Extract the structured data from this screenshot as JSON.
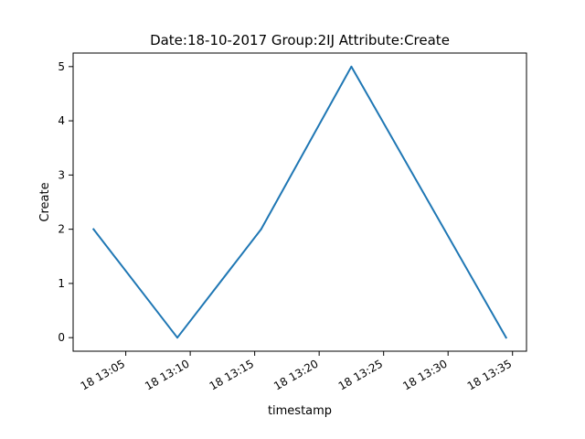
{
  "chart_data": {
    "type": "line",
    "title": "Date:18-10-2017  Group:2IJ Attribute:Create",
    "xlabel": "timestamp",
    "ylabel": "Create",
    "x": [
      "2017-10-18 13:02:30",
      "2017-10-18 13:09:00",
      "2017-10-18 13:15:30",
      "2017-10-18 13:22:30",
      "2017-10-18 13:34:30"
    ],
    "series": [
      {
        "values": [
          2,
          0,
          2,
          5,
          0
        ],
        "color": "#1f77b4"
      }
    ],
    "xlim": [
      "2017-10-18 13:00:55",
      "2017-10-18 13:36:05"
    ],
    "ylim": [
      -0.25,
      5.25
    ],
    "xticks": [
      "2017-10-18 13:05:00",
      "2017-10-18 13:10:00",
      "2017-10-18 13:15:00",
      "2017-10-18 13:20:00",
      "2017-10-18 13:25:00",
      "2017-10-18 13:30:00",
      "2017-10-18 13:35:00"
    ],
    "xtick_labels": [
      "18 13:05",
      "18 13:10",
      "18 13:15",
      "18 13:20",
      "18 13:25",
      "18 13:30",
      "18 13:35"
    ],
    "yticks": [
      0,
      1,
      2,
      3,
      4,
      5
    ],
    "ytick_labels": [
      "0",
      "1",
      "2",
      "3",
      "4",
      "5"
    ],
    "grid": false,
    "legend": "none"
  }
}
